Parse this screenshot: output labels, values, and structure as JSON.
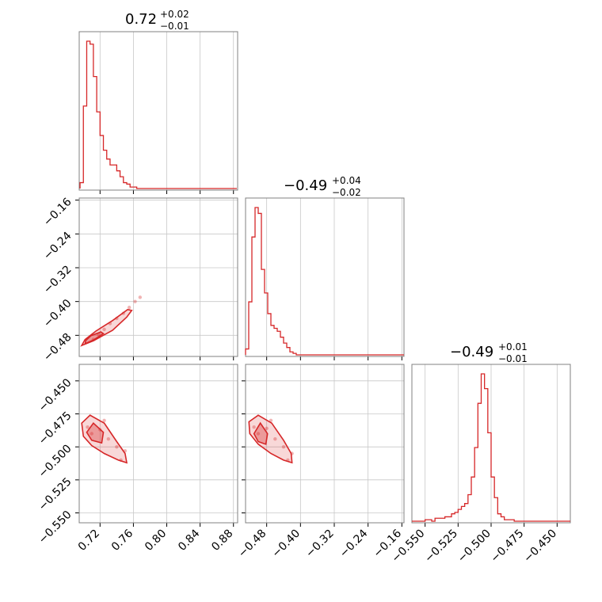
{
  "accent_color": "#d62728",
  "chart_data": [
    {
      "type": "histogram",
      "panel": "diag-0",
      "title_value": "0.72",
      "title_plus": "+0.02",
      "title_minus": "−0.01",
      "xlim": [
        0.695,
        0.885
      ],
      "xticks": [
        "0.72",
        "0.76",
        "0.80",
        "0.84",
        "0.88"
      ],
      "bins": {
        "start": 0.696,
        "step": 0.004,
        "counts": [
          0.04,
          0.56,
          1.0,
          0.98,
          0.76,
          0.52,
          0.36,
          0.26,
          0.2,
          0.16,
          0.16,
          0.12,
          0.08,
          0.04,
          0.03,
          0.01,
          0.01,
          0.0,
          0.0,
          0.0,
          0.0,
          0.0,
          0.0,
          0.0,
          0.0,
          0.0,
          0.0,
          0.0,
          0.0,
          0.0,
          0.0,
          0.0,
          0.0,
          0.0,
          0.0,
          0.0,
          0.0,
          0.0,
          0.0,
          0.0,
          0.0,
          0.0,
          0.0,
          0.0,
          0.0,
          0.0,
          0.0
        ]
      }
    },
    {
      "type": "histogram",
      "panel": "diag-1",
      "title_value": "−0.49",
      "title_plus": "+0.04",
      "title_minus": "−0.02",
      "xlim": [
        -0.53,
        -0.155
      ],
      "xticks": [
        "−0.48",
        "−0.40",
        "−0.32",
        "−0.24",
        "−0.16"
      ],
      "bins": {
        "start": -0.53,
        "step": 0.0075,
        "counts": [
          0.04,
          0.36,
          0.8,
          1.0,
          0.96,
          0.58,
          0.42,
          0.28,
          0.2,
          0.18,
          0.16,
          0.12,
          0.08,
          0.05,
          0.02,
          0.01,
          0.0,
          0.0,
          0.0,
          0.0,
          0.0,
          0.0,
          0.0,
          0.0,
          0.0,
          0.0,
          0.0,
          0.0,
          0.0,
          0.0,
          0.0,
          0.0,
          0.0,
          0.0,
          0.0,
          0.0,
          0.0,
          0.0,
          0.0,
          0.0,
          0.0,
          0.0,
          0.0,
          0.0,
          0.0,
          0.0,
          0.0,
          0.0,
          0.0,
          0.0
        ]
      }
    },
    {
      "type": "histogram",
      "panel": "diag-2",
      "title_value": "−0.49",
      "title_plus": "+0.01",
      "title_minus": "−0.01",
      "xlim": [
        -0.56,
        -0.44
      ],
      "xticks": [
        "−0.550",
        "−0.525",
        "−0.500",
        "−0.475",
        "−0.450"
      ],
      "bins": {
        "start": -0.56,
        "step": 0.0025,
        "counts": [
          0.0,
          0.0,
          0.0,
          0.0,
          0.01,
          0.01,
          0.0,
          0.02,
          0.02,
          0.02,
          0.03,
          0.03,
          0.05,
          0.06,
          0.08,
          0.1,
          0.12,
          0.18,
          0.3,
          0.5,
          0.8,
          1.0,
          0.9,
          0.6,
          0.3,
          0.16,
          0.05,
          0.03,
          0.01,
          0.01,
          0.01,
          0.0,
          0.0,
          0.0,
          0.0,
          0.0,
          0.0,
          0.0,
          0.0,
          0.0,
          0.0,
          0.0,
          0.0,
          0.0,
          0.0,
          0.0,
          0.0,
          0.0
        ]
      }
    },
    {
      "type": "scatter",
      "panel": "pair-1-0",
      "xlim": [
        0.695,
        0.885
      ],
      "ylim": [
        -0.53,
        -0.155
      ],
      "yticks": [
        "−0.16",
        "−0.24",
        "−0.32",
        "−0.40",
        "−0.48"
      ],
      "points": [
        [
          0.712,
          -0.49
        ],
        [
          0.718,
          -0.478
        ],
        [
          0.725,
          -0.466
        ],
        [
          0.732,
          -0.452
        ],
        [
          0.74,
          -0.44
        ],
        [
          0.748,
          -0.428
        ],
        [
          0.755,
          -0.414
        ],
        [
          0.762,
          -0.4
        ],
        [
          0.768,
          -0.39
        ]
      ],
      "contours": [
        [
          [
            0.698,
            -0.504
          ],
          [
            0.712,
            -0.493
          ],
          [
            0.735,
            -0.468
          ],
          [
            0.752,
            -0.437
          ],
          [
            0.758,
            -0.421
          ],
          [
            0.753,
            -0.419
          ],
          [
            0.735,
            -0.445
          ],
          [
            0.715,
            -0.47
          ],
          [
            0.702,
            -0.49
          ]
        ],
        [
          [
            0.702,
            -0.5
          ],
          [
            0.713,
            -0.49
          ],
          [
            0.724,
            -0.476
          ],
          [
            0.721,
            -0.472
          ],
          [
            0.709,
            -0.481
          ],
          [
            0.703,
            -0.492
          ]
        ]
      ]
    },
    {
      "type": "scatter",
      "panel": "pair-2-0",
      "xlim": [
        0.695,
        0.885
      ],
      "ylim": [
        -0.5575,
        -0.4375
      ],
      "yticks": [
        "−0.450",
        "−0.475",
        "−0.500",
        "−0.525",
        "−0.550"
      ],
      "points": [
        [
          0.71,
          -0.49
        ],
        [
          0.72,
          -0.487
        ],
        [
          0.73,
          -0.494
        ],
        [
          0.74,
          -0.5
        ],
        [
          0.75,
          -0.503
        ],
        [
          0.725,
          -0.48
        ],
        [
          0.705,
          -0.485
        ],
        [
          0.745,
          -0.51
        ]
      ],
      "contours": [
        [
          [
            0.698,
            -0.482
          ],
          [
            0.708,
            -0.476
          ],
          [
            0.725,
            -0.482
          ],
          [
            0.74,
            -0.496
          ],
          [
            0.75,
            -0.505
          ],
          [
            0.752,
            -0.512
          ],
          [
            0.742,
            -0.51
          ],
          [
            0.725,
            -0.505
          ],
          [
            0.71,
            -0.499
          ],
          [
            0.7,
            -0.492
          ]
        ],
        [
          [
            0.704,
            -0.489
          ],
          [
            0.712,
            -0.482
          ],
          [
            0.724,
            -0.489
          ],
          [
            0.722,
            -0.497
          ],
          [
            0.71,
            -0.495
          ]
        ]
      ]
    },
    {
      "type": "scatter",
      "panel": "pair-2-1",
      "xlim": [
        -0.53,
        -0.155
      ],
      "ylim": [
        -0.5575,
        -0.4375
      ],
      "points": [
        [
          -0.5,
          -0.49
        ],
        [
          -0.48,
          -0.486
        ],
        [
          -0.46,
          -0.494
        ],
        [
          -0.44,
          -0.5
        ],
        [
          -0.42,
          -0.505
        ],
        [
          -0.47,
          -0.48
        ],
        [
          -0.51,
          -0.485
        ],
        [
          -0.43,
          -0.51
        ]
      ],
      "contours": [
        [
          [
            -0.522,
            -0.481
          ],
          [
            -0.5,
            -0.476
          ],
          [
            -0.468,
            -0.482
          ],
          [
            -0.44,
            -0.495
          ],
          [
            -0.422,
            -0.505
          ],
          [
            -0.42,
            -0.512
          ],
          [
            -0.44,
            -0.51
          ],
          [
            -0.47,
            -0.505
          ],
          [
            -0.5,
            -0.498
          ],
          [
            -0.52,
            -0.49
          ]
        ],
        [
          [
            -0.51,
            -0.49
          ],
          [
            -0.495,
            -0.482
          ],
          [
            -0.478,
            -0.49
          ],
          [
            -0.482,
            -0.498
          ],
          [
            -0.5,
            -0.496
          ]
        ]
      ]
    }
  ]
}
